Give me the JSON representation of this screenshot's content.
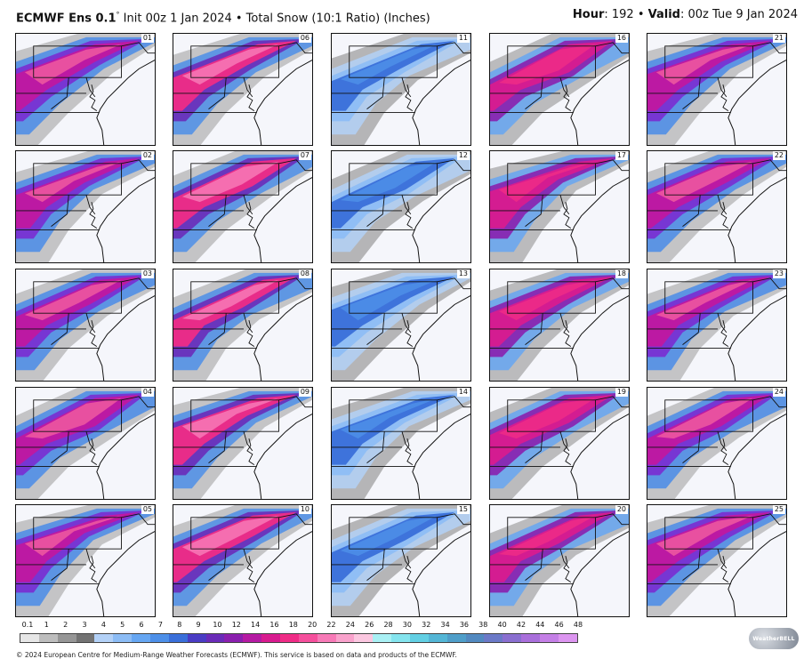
{
  "header": {
    "model": "ECMWF Ens 0.1",
    "degree": "°",
    "init_text": "Init 00z 1 Jan 2024 • Total Snow (10:1 Ratio) (Inches)",
    "hour_label": "Hour",
    "hour_value": ": 192 • ",
    "valid_label": "Valid",
    "valid_value": ": 00z Tue 9 Jan 2024"
  },
  "members": [
    "01",
    "06",
    "11",
    "16",
    "21",
    "02",
    "07",
    "12",
    "17",
    "22",
    "03",
    "08",
    "13",
    "18",
    "23",
    "04",
    "09",
    "14",
    "19",
    "24",
    "05",
    "10",
    "15",
    "20",
    "25"
  ],
  "colorbar": {
    "ticks": [
      "0.1",
      "1",
      "2",
      "3",
      "4",
      "5",
      "6",
      "7",
      "8",
      "9",
      "10",
      "12",
      "14",
      "16",
      "18",
      "20",
      "22",
      "24",
      "26",
      "28",
      "30",
      "32",
      "34",
      "36",
      "38",
      "40",
      "42",
      "44",
      "46",
      "48"
    ],
    "colors": [
      "#e6e6e6",
      "#bdbdbd",
      "#969696",
      "#737373",
      "#b3d1f7",
      "#8cbcf5",
      "#66a6f2",
      "#4d8fe8",
      "#3a6fd9",
      "#4a3cc4",
      "#6a2bb8",
      "#8a1fae",
      "#b51aa3",
      "#d81b8f",
      "#ef2c86",
      "#f54f9c",
      "#f77ab7",
      "#f9a2cc",
      "#fbc7e0",
      "#a9f0f4",
      "#84e4ee",
      "#62cfe3",
      "#54b6d6",
      "#4f9ec9",
      "#5289c0",
      "#6b79c7",
      "#8a6fd0",
      "#a96fdb",
      "#c47fe6",
      "#dc95f0"
    ]
  },
  "footer": "© 2024 European Centre for Medium-Range Weather Forecasts (ECMWF). This service is based on data and products of the ECMWF.",
  "logo_text": "WeatherBELL"
}
